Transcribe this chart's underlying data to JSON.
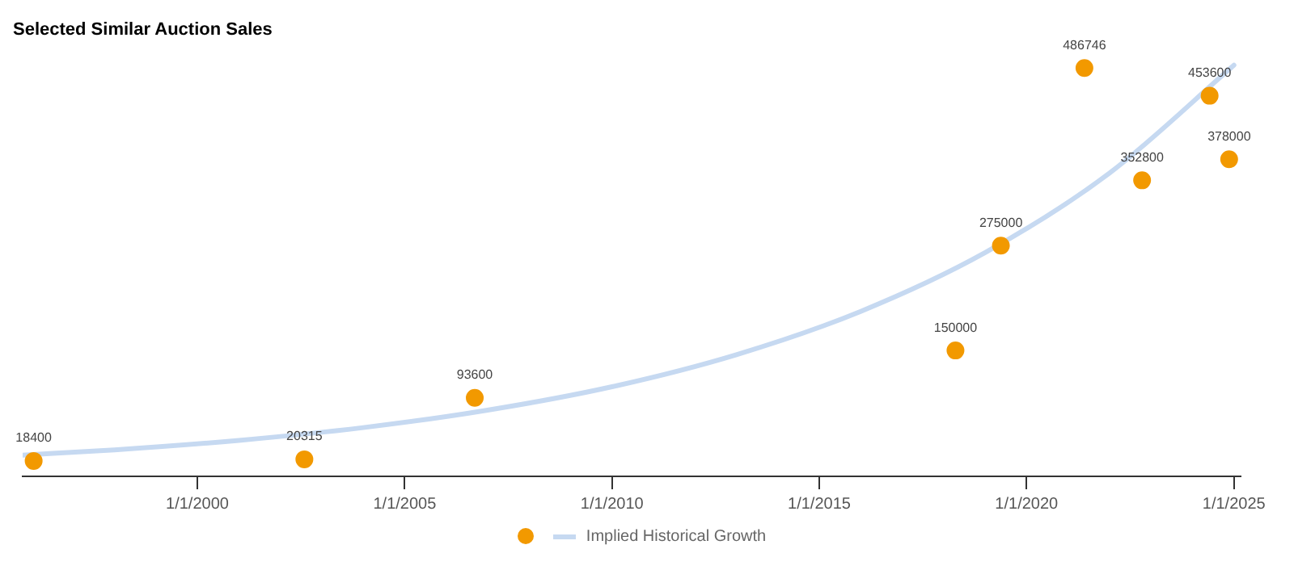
{
  "chart_data": {
    "type": "scatter",
    "title": "Selected Similar Auction Sales",
    "series": [
      {
        "type": "scatter",
        "marker": "circle",
        "color": "#f29900",
        "x": [
          "1996-01-20",
          "2002-08-01",
          "2006-09-10",
          "2018-04-15",
          "2019-05-20",
          "2021-05-25",
          "2022-10-15",
          "2024-06-01",
          "2024-11-20"
        ],
        "values": [
          18400,
          20315,
          93600,
          150000,
          275000,
          486746,
          352800,
          453600,
          378000
        ],
        "value_labels": [
          "18400",
          "20315",
          "93600",
          "150000",
          "275000",
          "486746",
          "352800",
          "453600",
          "378000"
        ]
      },
      {
        "type": "line",
        "name": "Implied Historical Growth",
        "color": "#c6d9f1",
        "x": [
          "1995-10-15",
          "1998-01-01",
          "2001-01-01",
          "2004-01-01",
          "2007-01-01",
          "2010-01-01",
          "2013-01-01",
          "2016-01-01",
          "2019-01-01",
          "2022-01-01",
          "2025-01-01"
        ],
        "values": [
          25300,
          31600,
          42900,
          58100,
          78900,
          106800,
          145000,
          196600,
          266600,
          361500,
          490000
        ]
      }
    ],
    "xlim": [
      "1995-10-15",
      "2025-03-01"
    ],
    "xticks": [
      {
        "value": "2000-01-01",
        "label": "1/1/2000"
      },
      {
        "value": "2005-01-01",
        "label": "1/1/2005"
      },
      {
        "value": "2010-01-01",
        "label": "1/1/2010"
      },
      {
        "value": "2015-01-01",
        "label": "1/1/2015"
      },
      {
        "value": "2020-01-01",
        "label": "1/1/2020"
      },
      {
        "value": "2025-01-01",
        "label": "1/1/2025"
      }
    ],
    "tick_labels": "x",
    "grid": false,
    "legend": "bottom"
  }
}
